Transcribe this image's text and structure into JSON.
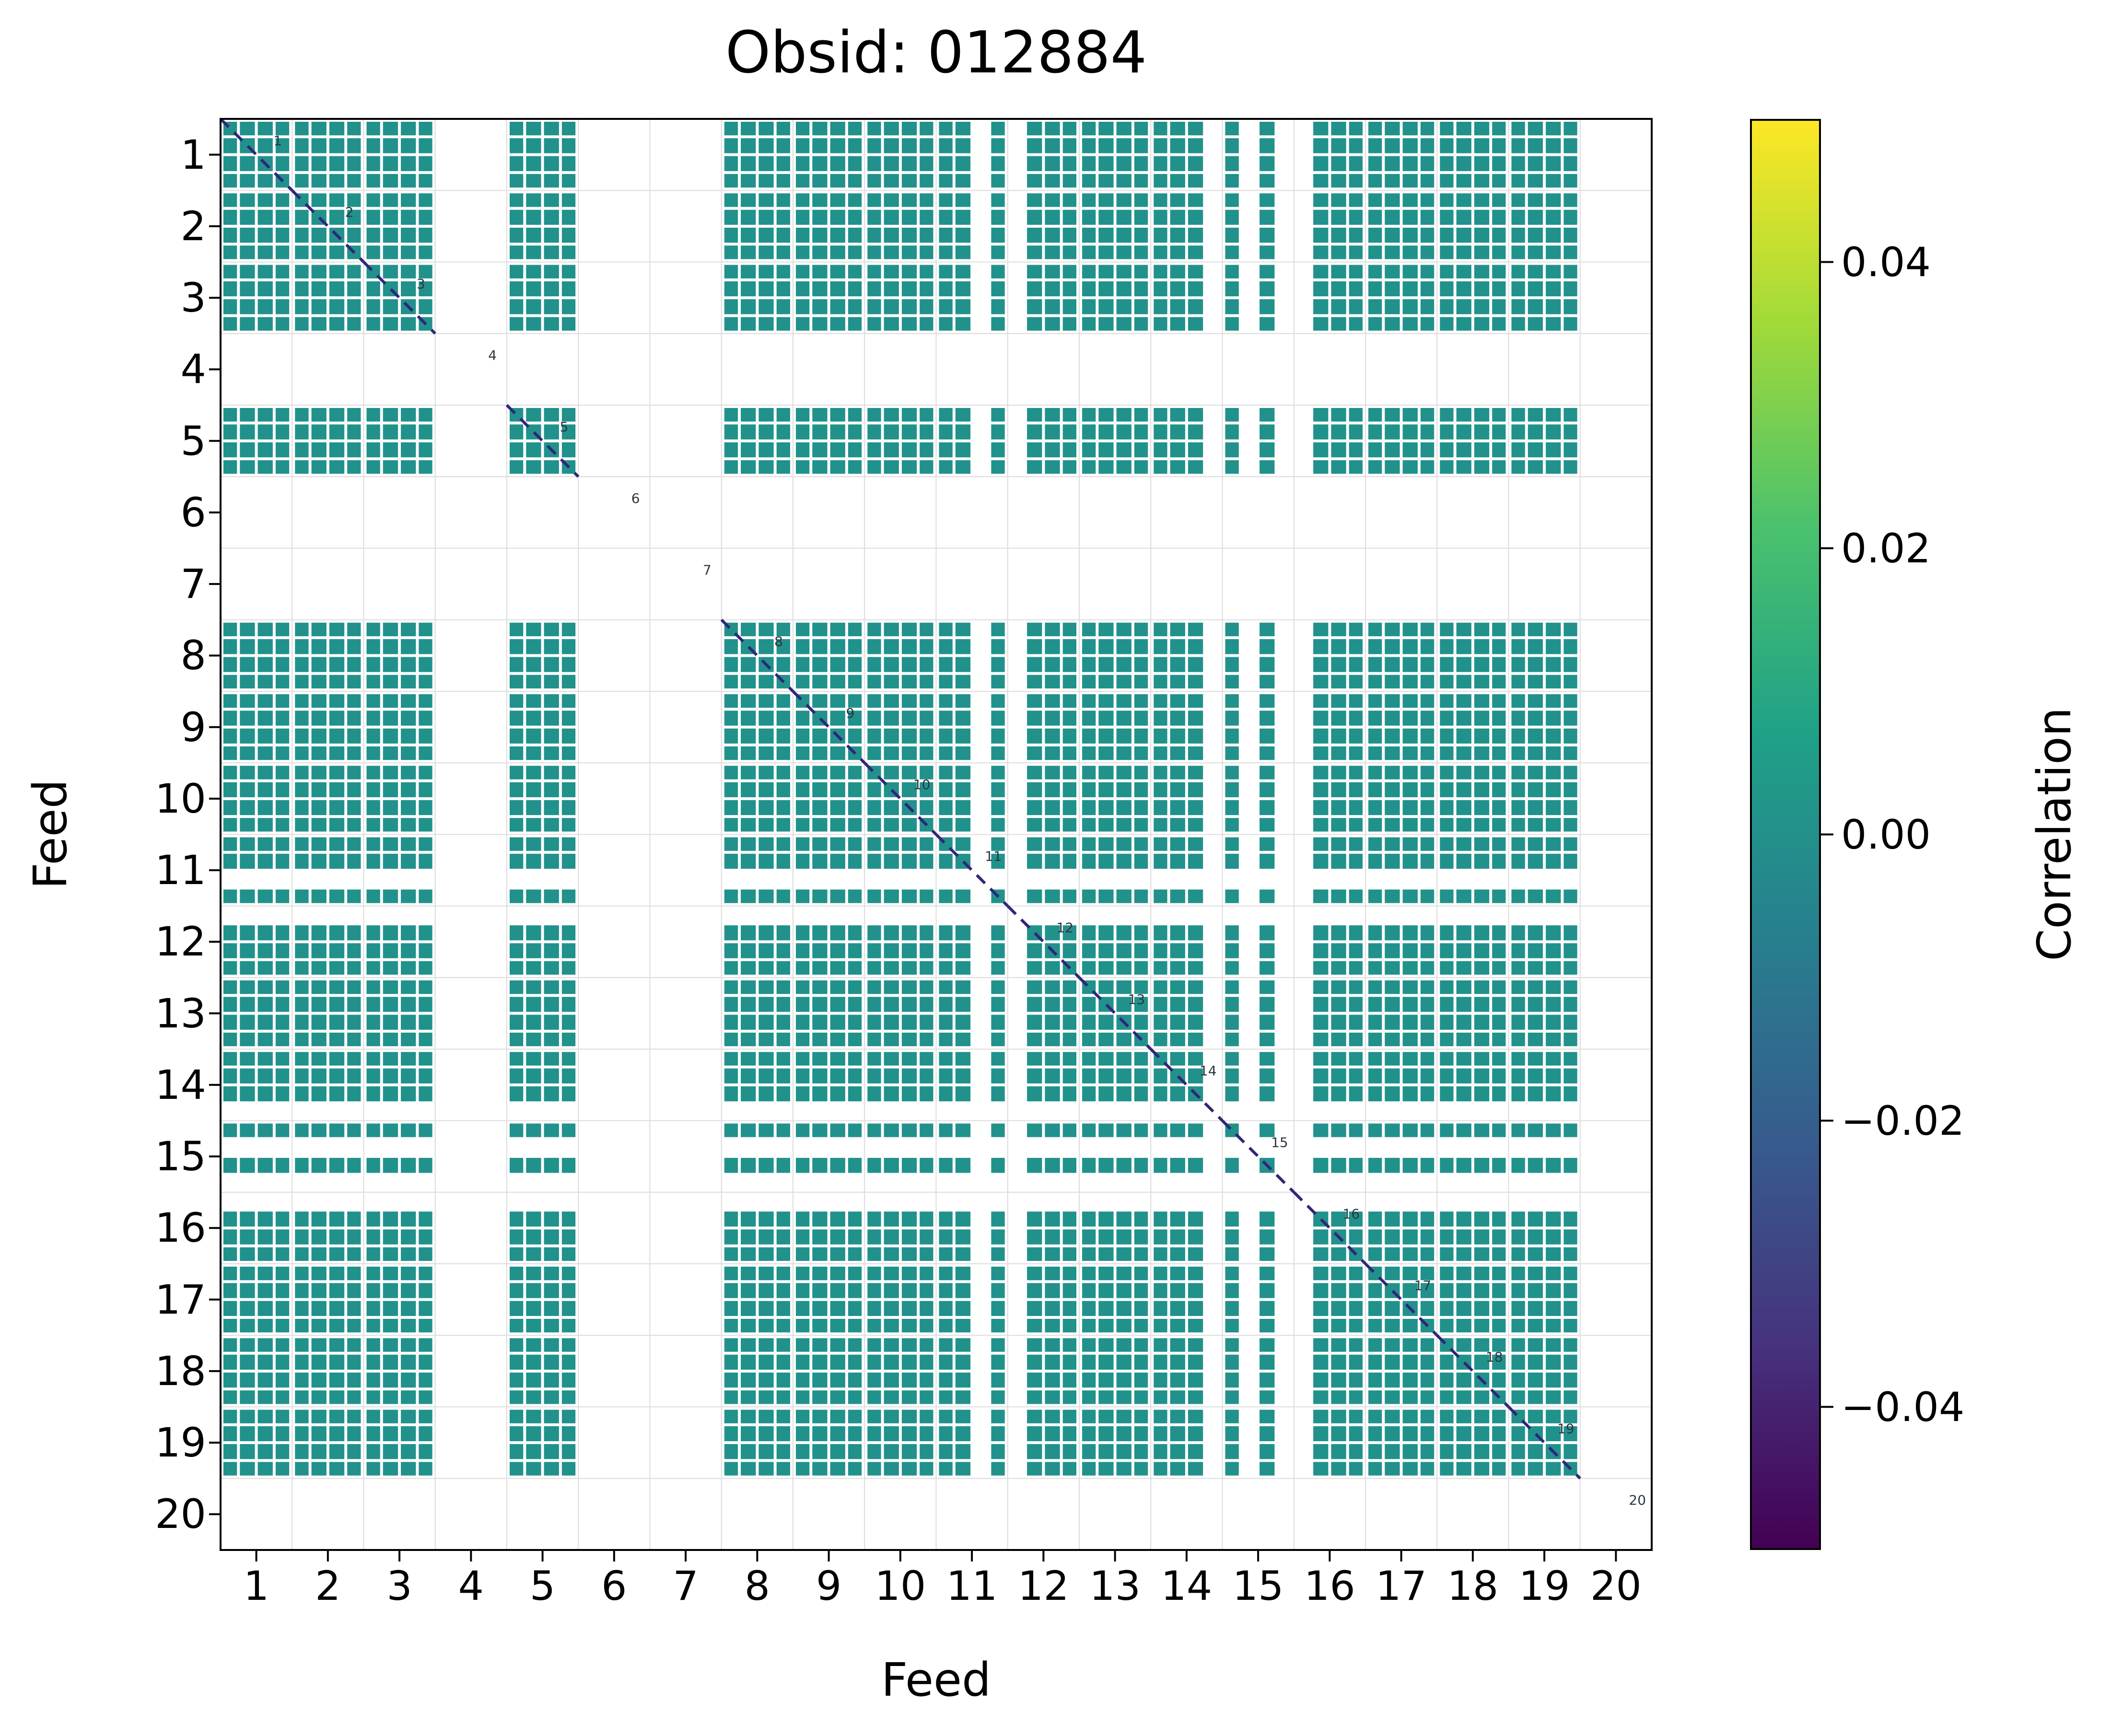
{
  "chart_data": {
    "type": "heatmap",
    "title": "Obsid: 012884",
    "xlabel": "Feed",
    "ylabel": "Feed",
    "x_ticks": [
      "1",
      "2",
      "3",
      "4",
      "5",
      "6",
      "7",
      "8",
      "9",
      "10",
      "11",
      "12",
      "13",
      "14",
      "15",
      "16",
      "17",
      "18",
      "19",
      "20"
    ],
    "y_ticks": [
      "1",
      "2",
      "3",
      "4",
      "5",
      "6",
      "7",
      "8",
      "9",
      "10",
      "11",
      "12",
      "13",
      "14",
      "15",
      "16",
      "17",
      "18",
      "19",
      "20"
    ],
    "n_feeds": 20,
    "subbands_per_feed": 4,
    "missing_feeds": [
      4,
      6,
      7,
      20
    ],
    "missing_subbands": [
      {
        "feed": 11,
        "subband": 2
      },
      {
        "feed": 12,
        "subband": 0
      },
      {
        "feed": 14,
        "subband": 3
      },
      {
        "feed": 15,
        "subband": 1
      },
      {
        "feed": 15,
        "subband": 3
      },
      {
        "feed": 16,
        "subband": 0
      }
    ],
    "fill_value": 0.0,
    "fill_color": "#21918c",
    "grid_color": "#dcdcdc",
    "diagonal": {
      "style": "dashed",
      "color": "#2e2778",
      "labels": [
        "1",
        "2",
        "3",
        "4",
        "5",
        "6",
        "7",
        "8",
        "9",
        "10",
        "11",
        "12",
        "13",
        "14",
        "15",
        "16",
        "17",
        "18",
        "19",
        "20"
      ]
    },
    "colorbar": {
      "label": "Correlation",
      "tick_labels": [
        "0.04",
        "0.02",
        "0.00",
        "−0.02",
        "−0.04"
      ],
      "tick_values": [
        0.04,
        0.02,
        0.0,
        -0.02,
        -0.04
      ],
      "vmin": -0.05,
      "vmax": 0.05,
      "colormap": "viridis",
      "gradient_stops": [
        "#440154",
        "#46327e",
        "#365c8d",
        "#277f8e",
        "#1fa187",
        "#4ac16d",
        "#a0da39",
        "#fde725"
      ]
    }
  }
}
